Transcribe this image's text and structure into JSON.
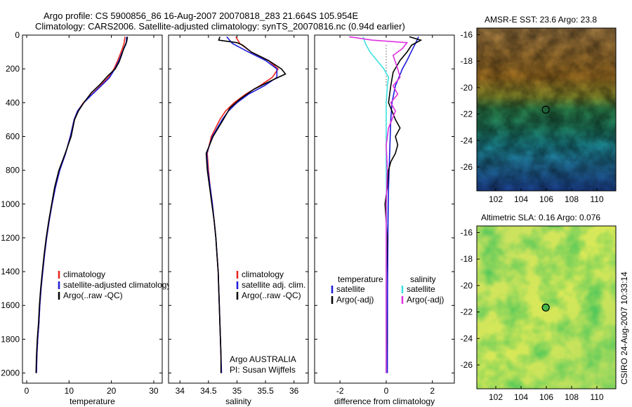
{
  "header": {
    "line1": "Argo profile: CS 5900856_86 16-Aug-2007 20070818_283 21.664S 105.954E",
    "line2": "Climatology: CARS2006. Satellite-adjusted climatology: synTS_20070816.nc (0.94d earlier)"
  },
  "footer_stamp": "CSIRO 24-Aug-2007 10:33:14",
  "colors": {
    "red": "#e8241c",
    "blue": "#1c1cdc",
    "black": "#000000",
    "cyan": "#3ee0e0",
    "magenta": "#e030e0"
  },
  "chart_data": [
    {
      "id": "temperature",
      "type": "line",
      "xlabel": "temperature",
      "ylabel": "",
      "xlim": [
        -1,
        32
      ],
      "ylim": [
        2060,
        0
      ],
      "y_reversed": true,
      "xticks": [
        0,
        10,
        20,
        30
      ],
      "yticks": [
        0,
        200,
        400,
        600,
        800,
        1000,
        1200,
        1400,
        1600,
        1800,
        2000
      ],
      "legend": [
        "climatology",
        "satellite-adjusted climatology",
        "Argo(..raw -QC)"
      ],
      "legend_position": "lower-center",
      "series": [
        {
          "name": "climatology",
          "color": "red",
          "points": [
            [
              23.2,
              10
            ],
            [
              23.0,
              50
            ],
            [
              22.3,
              100
            ],
            [
              21.5,
              150
            ],
            [
              20.6,
              200
            ],
            [
              19.3,
              250
            ],
            [
              17.4,
              300
            ],
            [
              15.4,
              350
            ],
            [
              13.4,
              400
            ],
            [
              12.0,
              450
            ],
            [
              11.2,
              500
            ],
            [
              10.3,
              600
            ],
            [
              9.2,
              700
            ],
            [
              7.8,
              800
            ],
            [
              6.8,
              900
            ],
            [
              6.0,
              1000
            ],
            [
              5.3,
              1100
            ],
            [
              4.7,
              1200
            ],
            [
              4.2,
              1300
            ],
            [
              3.8,
              1400
            ],
            [
              3.4,
              1500
            ],
            [
              3.1,
              1600
            ],
            [
              2.9,
              1700
            ],
            [
              2.6,
              1800
            ],
            [
              2.4,
              1900
            ],
            [
              2.3,
              2000
            ]
          ]
        },
        {
          "name": "satellite-adjusted climatology",
          "color": "blue",
          "points": [
            [
              23.6,
              10
            ],
            [
              23.5,
              50
            ],
            [
              22.6,
              100
            ],
            [
              21.8,
              150
            ],
            [
              20.8,
              200
            ],
            [
              19.6,
              250
            ],
            [
              17.6,
              300
            ],
            [
              15.5,
              350
            ],
            [
              13.5,
              400
            ],
            [
              12.0,
              450
            ],
            [
              11.2,
              500
            ],
            [
              10.3,
              600
            ],
            [
              9.2,
              700
            ],
            [
              7.8,
              800
            ],
            [
              6.8,
              900
            ],
            [
              6.0,
              1000
            ],
            [
              5.3,
              1100
            ],
            [
              4.7,
              1200
            ],
            [
              4.2,
              1300
            ],
            [
              3.8,
              1400
            ],
            [
              3.4,
              1500
            ],
            [
              3.1,
              1600
            ],
            [
              2.9,
              1700
            ],
            [
              2.6,
              1800
            ],
            [
              2.4,
              1900
            ],
            [
              2.3,
              2000
            ]
          ]
        },
        {
          "name": "Argo(..raw -QC)",
          "color": "black",
          "points": [
            [
              23.8,
              10
            ],
            [
              23.6,
              40
            ],
            [
              22.9,
              80
            ],
            [
              22.4,
              120
            ],
            [
              21.8,
              160
            ],
            [
              20.9,
              200
            ],
            [
              19.2,
              240
            ],
            [
              17.4,
              290
            ],
            [
              15.3,
              340
            ],
            [
              13.5,
              400
            ],
            [
              12.2,
              450
            ],
            [
              11.3,
              500
            ],
            [
              10.5,
              600
            ],
            [
              9.1,
              700
            ],
            [
              7.6,
              800
            ],
            [
              6.6,
              900
            ],
            [
              5.9,
              1000
            ],
            [
              5.2,
              1100
            ],
            [
              4.6,
              1200
            ],
            [
              4.1,
              1300
            ],
            [
              3.7,
              1400
            ],
            [
              3.3,
              1500
            ],
            [
              3.0,
              1600
            ],
            [
              2.8,
              1700
            ],
            [
              2.5,
              1800
            ],
            [
              2.3,
              1900
            ],
            [
              2.2,
              2000
            ]
          ]
        }
      ]
    },
    {
      "id": "salinity",
      "type": "line",
      "xlabel": "salinity",
      "ylabel": "",
      "xlim": [
        33.8,
        36.25
      ],
      "ylim": [
        2060,
        0
      ],
      "y_reversed": true,
      "xticks": [
        34,
        34.5,
        35,
        35.5,
        36
      ],
      "legend": [
        "climatology",
        "satellite adj. clim.",
        "Argo(..raw -QC)"
      ],
      "legend_position": "lower-center",
      "annotation": [
        "Argo AUSTRALIA",
        "PI: Susan Wijffels"
      ],
      "series": [
        {
          "name": "climatology",
          "color": "red",
          "points": [
            [
              34.98,
              10
            ],
            [
              35.05,
              50
            ],
            [
              35.25,
              100
            ],
            [
              35.55,
              150
            ],
            [
              35.72,
              200
            ],
            [
              35.62,
              250
            ],
            [
              35.4,
              300
            ],
            [
              35.15,
              350
            ],
            [
              34.95,
              400
            ],
            [
              34.8,
              450
            ],
            [
              34.7,
              500
            ],
            [
              34.55,
              600
            ],
            [
              34.48,
              700
            ],
            [
              34.5,
              800
            ],
            [
              34.53,
              900
            ],
            [
              34.57,
              1000
            ],
            [
              34.6,
              1100
            ],
            [
              34.63,
              1200
            ],
            [
              34.65,
              1300
            ],
            [
              34.67,
              1400
            ],
            [
              34.68,
              1500
            ],
            [
              34.69,
              1600
            ],
            [
              34.7,
              1700
            ],
            [
              34.71,
              1800
            ],
            [
              34.72,
              1900
            ],
            [
              34.72,
              2000
            ]
          ]
        },
        {
          "name": "satellite adj. clim.",
          "color": "blue",
          "points": [
            [
              34.82,
              10
            ],
            [
              34.92,
              50
            ],
            [
              35.2,
              100
            ],
            [
              35.5,
              150
            ],
            [
              35.7,
              200
            ],
            [
              35.7,
              250
            ],
            [
              35.48,
              300
            ],
            [
              35.2,
              350
            ],
            [
              35.0,
              400
            ],
            [
              34.85,
              450
            ],
            [
              34.74,
              500
            ],
            [
              34.57,
              600
            ],
            [
              34.47,
              700
            ],
            [
              34.49,
              800
            ],
            [
              34.53,
              900
            ],
            [
              34.57,
              1000
            ],
            [
              34.6,
              1100
            ],
            [
              34.63,
              1200
            ],
            [
              34.65,
              1300
            ],
            [
              34.67,
              1400
            ],
            [
              34.68,
              1500
            ],
            [
              34.69,
              1600
            ],
            [
              34.7,
              1700
            ],
            [
              34.71,
              1800
            ],
            [
              34.72,
              1900
            ],
            [
              34.73,
              2000
            ]
          ]
        },
        {
          "name": "Argo(..raw -QC)",
          "color": "black",
          "points": [
            [
              34.7,
              10
            ],
            [
              34.68,
              30
            ],
            [
              35.0,
              45
            ],
            [
              35.1,
              60
            ],
            [
              35.25,
              100
            ],
            [
              35.55,
              150
            ],
            [
              35.78,
              200
            ],
            [
              35.85,
              230
            ],
            [
              35.6,
              270
            ],
            [
              35.3,
              320
            ],
            [
              35.05,
              380
            ],
            [
              34.88,
              430
            ],
            [
              34.76,
              500
            ],
            [
              34.58,
              600
            ],
            [
              34.46,
              700
            ],
            [
              34.48,
              800
            ],
            [
              34.52,
              900
            ],
            [
              34.56,
              1000
            ],
            [
              34.6,
              1100
            ],
            [
              34.63,
              1200
            ],
            [
              34.65,
              1300
            ],
            [
              34.67,
              1400
            ],
            [
              34.68,
              1500
            ],
            [
              34.69,
              1600
            ],
            [
              34.7,
              1700
            ],
            [
              34.71,
              1800
            ],
            [
              34.72,
              1900
            ],
            [
              34.72,
              2000
            ]
          ]
        }
      ]
    },
    {
      "id": "difference",
      "type": "line",
      "xlabel": "difference from climatology",
      "ylabel": "",
      "xlim": [
        -3.1,
        2.95
      ],
      "ylim": [
        2060,
        0
      ],
      "y_reversed": true,
      "xticks": [
        -2,
        0,
        2
      ],
      "legend_groups": [
        {
          "title": "temperature",
          "items": [
            "satellite",
            "Argo(-adj)"
          ]
        },
        {
          "title": "salinity",
          "items": [
            "satellite",
            "Argo(-adj)"
          ]
        }
      ],
      "legend_position": "lower-center",
      "series": [
        {
          "name": "temperature satellite",
          "color": "blue",
          "points": [
            [
              1.4,
              10
            ],
            [
              1.3,
              40
            ],
            [
              1.15,
              80
            ],
            [
              0.9,
              150
            ],
            [
              0.7,
              200
            ],
            [
              0.55,
              250
            ],
            [
              0.4,
              300
            ],
            [
              0.25,
              400
            ],
            [
              0.2,
              500
            ],
            [
              0.15,
              700
            ],
            [
              0.1,
              900
            ],
            [
              0.08,
              1100
            ],
            [
              0.06,
              1500
            ],
            [
              0.05,
              2000
            ]
          ]
        },
        {
          "name": "temperature Argo(-adj)",
          "color": "black",
          "points": [
            [
              1.0,
              10
            ],
            [
              1.5,
              30
            ],
            [
              1.1,
              60
            ],
            [
              0.9,
              100
            ],
            [
              0.6,
              150
            ],
            [
              0.3,
              220
            ],
            [
              0.2,
              300
            ],
            [
              0.1,
              400
            ],
            [
              0.4,
              500
            ],
            [
              0.6,
              550
            ],
            [
              0.4,
              600
            ],
            [
              0.5,
              650
            ],
            [
              0.4,
              700
            ],
            [
              0.2,
              750
            ],
            [
              0.1,
              800
            ],
            [
              0.05,
              900
            ],
            [
              -0.05,
              1000
            ],
            [
              0.05,
              1200
            ],
            [
              0.0,
              1500
            ],
            [
              0.02,
              1800
            ],
            [
              0.0,
              2000
            ]
          ]
        },
        {
          "name": "salinity satellite",
          "color": "cyan",
          "points": [
            [
              -1.0,
              10
            ],
            [
              -0.9,
              50
            ],
            [
              -0.7,
              100
            ],
            [
              -0.4,
              150
            ],
            [
              -0.1,
              200
            ],
            [
              0.1,
              250
            ],
            [
              0.05,
              300
            ],
            [
              0.0,
              400
            ],
            [
              0.0,
              600
            ],
            [
              0.0,
              800
            ],
            [
              0.02,
              1000
            ],
            [
              0.0,
              1500
            ],
            [
              0.0,
              2000
            ]
          ]
        },
        {
          "name": "salinity Argo(-adj)",
          "color": "magenta",
          "points": [
            [
              -1.6,
              10
            ],
            [
              -0.6,
              30
            ],
            [
              0.9,
              45
            ],
            [
              0.7,
              80
            ],
            [
              0.3,
              120
            ],
            [
              0.5,
              200
            ],
            [
              0.6,
              250
            ],
            [
              0.3,
              300
            ],
            [
              0.5,
              350
            ],
            [
              0.2,
              400
            ],
            [
              0.4,
              450
            ],
            [
              0.1,
              550
            ],
            [
              0.0,
              650
            ],
            [
              0.05,
              800
            ],
            [
              0.0,
              1000
            ],
            [
              0.0,
              2000
            ]
          ]
        }
      ]
    },
    {
      "id": "amsre_sst",
      "type": "heatmap",
      "title": "AMSR-E SST: 23.6 Argo: 23.8",
      "xlim": [
        100.5,
        111.5
      ],
      "ylim": [
        -27.8,
        -15.5
      ],
      "xticks": [
        102,
        104,
        106,
        108,
        110
      ],
      "yticks": [
        -16,
        -18,
        -20,
        -22,
        -24,
        -26
      ],
      "marker": {
        "lon": 105.954,
        "lat": -21.664
      }
    },
    {
      "id": "altimetric_sla",
      "type": "heatmap",
      "title": "Altimetric SLA: 0.16 Argo: 0.076",
      "xlim": [
        100.5,
        111.5
      ],
      "ylim": [
        -27.8,
        -15.5
      ],
      "xticks": [
        102,
        104,
        106,
        108,
        110
      ],
      "yticks": [
        -16,
        -18,
        -20,
        -22,
        -24,
        -26
      ],
      "marker": {
        "lon": 105.954,
        "lat": -21.664
      }
    }
  ]
}
